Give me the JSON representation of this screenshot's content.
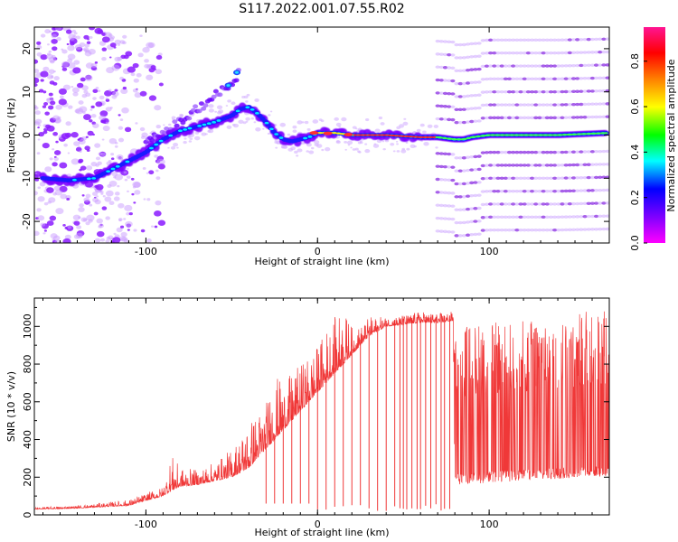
{
  "figure_title": "S117.2022.001.07.55.R02",
  "chart_data": [
    {
      "type": "heatmap",
      "xlabel": "Height of straight line (km)",
      "ylabel": "Frequency (Hz)",
      "xlim": [
        -165,
        170
      ],
      "ylim": [
        -25,
        25
      ],
      "xticks": [
        -100,
        0,
        100
      ],
      "yticks": [
        -20,
        -10,
        0,
        10,
        20
      ],
      "colorbar": {
        "label": "Normalized spectral amplitude",
        "range": [
          0.0,
          0.95
        ],
        "ticks": [
          0.0,
          0.2,
          0.4,
          0.6,
          0.8
        ],
        "colormap": [
          "#ff00ff",
          "#7f00ff",
          "#0000ff",
          "#00ffff",
          "#00ff00",
          "#ffff00",
          "#ff7f00",
          "#ff0000",
          "#ff1493"
        ]
      },
      "ridge": {
        "x": [
          -160,
          -145,
          -130,
          -120,
          -110,
          -100,
          -90,
          -80,
          -70,
          -60,
          -50,
          -45,
          -40,
          -35,
          -30,
          -25,
          -20,
          -15,
          -10,
          -5,
          0,
          10,
          20,
          40,
          60,
          70,
          80,
          85,
          90,
          100,
          120,
          140,
          170
        ],
        "y": [
          -10,
          -10.5,
          -10,
          -8,
          -6,
          -4,
          -1,
          1,
          2,
          3,
          4.5,
          6,
          6.5,
          5,
          3,
          0.5,
          -1,
          -1.5,
          -1,
          -0.5,
          0.5,
          0.5,
          0,
          0,
          -0.5,
          -0.5,
          -1,
          -1,
          -0.5,
          0,
          0,
          0,
          0.5
        ]
      },
      "ghost_branch": {
        "x": [
          -100,
          -90,
          -80,
          -70,
          -60,
          -50,
          -45
        ],
        "y": [
          -2,
          0.5,
          3,
          6,
          9,
          12,
          15
        ]
      },
      "harmonic_bands_hz": [
        -22,
        -19,
        -16,
        -13,
        -10,
        -7,
        -4,
        4,
        7,
        10,
        13,
        16,
        19,
        22
      ],
      "harmonic_range_km": [
        70,
        170
      ]
    },
    {
      "type": "line",
      "xlabel": "Height of straight line (km)",
      "ylabel": "SNR (10 * v/v)",
      "xlim": [
        -165,
        170
      ],
      "ylim": [
        0,
        1150
      ],
      "xticks": [
        -100,
        0,
        100
      ],
      "yticks": [
        0,
        200,
        400,
        600,
        800,
        1000
      ],
      "color": "#ee2222",
      "envelope": {
        "x": [
          -165,
          -140,
          -110,
          -90,
          -85,
          -80,
          -70,
          -60,
          -50,
          -40,
          -35,
          -30,
          -25,
          -20,
          -15,
          -10,
          -5,
          0,
          5,
          10,
          15,
          20,
          25,
          30,
          40,
          50,
          60,
          70,
          79,
          80,
          100,
          120,
          140,
          170
        ],
        "base": [
          30,
          35,
          50,
          100,
          130,
          150,
          160,
          180,
          200,
          250,
          300,
          350,
          400,
          450,
          500,
          550,
          600,
          650,
          700,
          750,
          800,
          850,
          900,
          950,
          1000,
          1010,
          1020,
          1020,
          1030,
          160,
          170,
          180,
          190,
          200
        ],
        "spike": [
          40,
          50,
          80,
          150,
          320,
          250,
          240,
          280,
          350,
          500,
          550,
          600,
          750,
          700,
          750,
          800,
          850,
          900,
          1000,
          1050,
          1100,
          1000,
          1000,
          1050,
          1050,
          1060,
          1080,
          1070,
          1080,
          1000,
          1020,
          1030,
          1060,
          1100
        ]
      },
      "dropouts_km": [
        -30,
        -25,
        -20,
        -15,
        -10,
        -5,
        0,
        5,
        10,
        15,
        20,
        25,
        30,
        35,
        40,
        45,
        48,
        50,
        52,
        55,
        58,
        60,
        63,
        66,
        69,
        72,
        74,
        77
      ]
    }
  ]
}
